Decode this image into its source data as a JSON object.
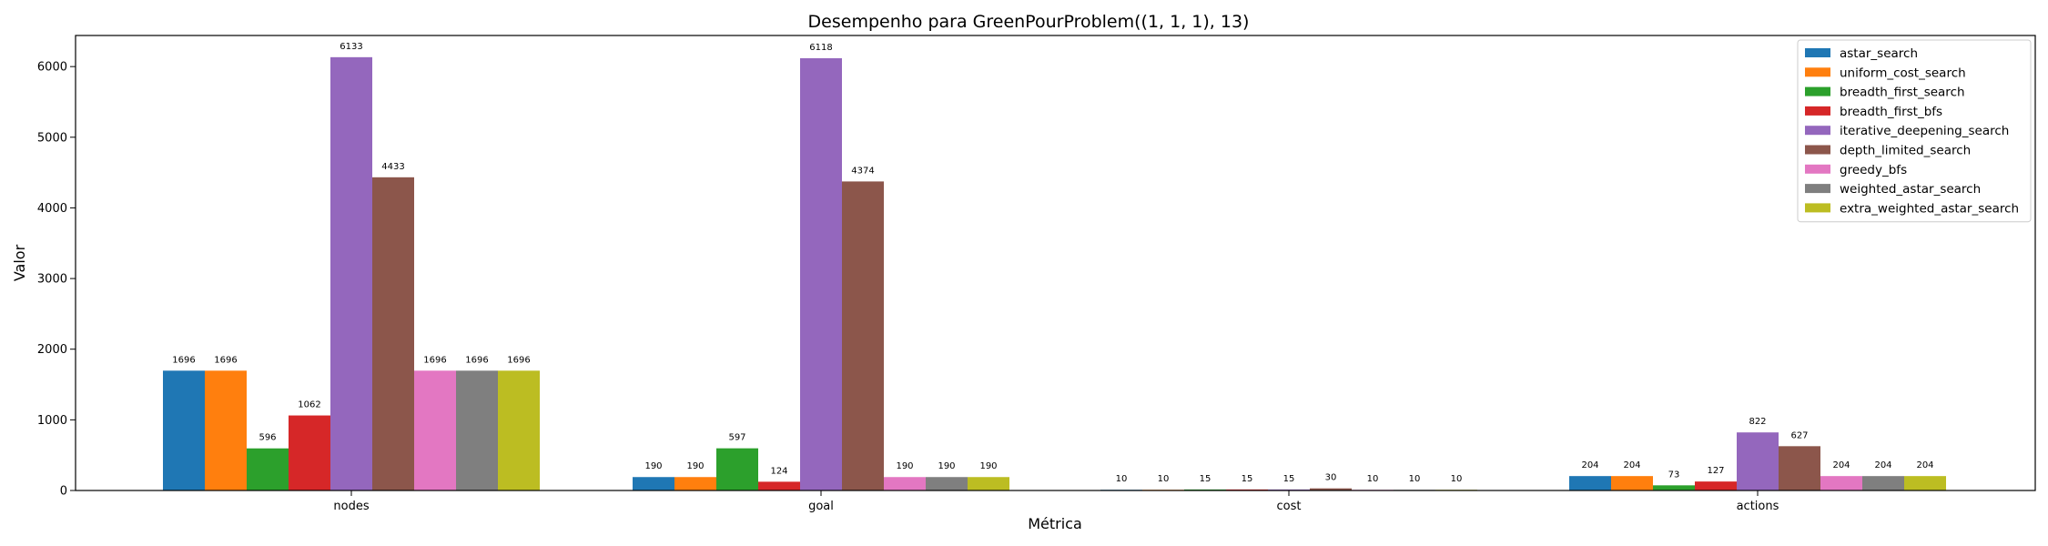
{
  "chart_data": {
    "type": "bar",
    "title": "Desempenho para GreenPourProblem((1, 1, 1), 13)",
    "xlabel": "Métrica",
    "ylabel": "Valor",
    "categories": [
      "nodes",
      "goal",
      "cost",
      "actions"
    ],
    "ylim": [
      0,
      6440
    ],
    "yticks": [
      0,
      1000,
      2000,
      3000,
      4000,
      5000,
      6000
    ],
    "legend_position": "top-right",
    "grid": false,
    "series": [
      {
        "name": "astar_search",
        "color": "#1f77b4",
        "values": [
          1696,
          190,
          10,
          204
        ]
      },
      {
        "name": "uniform_cost_search",
        "color": "#ff7f0e",
        "values": [
          1696,
          190,
          10,
          204
        ]
      },
      {
        "name": "breadth_first_search",
        "color": "#2ca02c",
        "values": [
          596,
          597,
          15,
          73
        ]
      },
      {
        "name": "breadth_first_bfs",
        "color": "#d62728",
        "values": [
          1062,
          124,
          15,
          127
        ]
      },
      {
        "name": "iterative_deepening_search",
        "color": "#9467bd",
        "values": [
          6133,
          6118,
          15,
          822
        ]
      },
      {
        "name": "depth_limited_search",
        "color": "#8c564b",
        "values": [
          4433,
          4374,
          30,
          627
        ]
      },
      {
        "name": "greedy_bfs",
        "color": "#e377c2",
        "values": [
          1696,
          190,
          10,
          204
        ]
      },
      {
        "name": "weighted_astar_search",
        "color": "#7f7f7f",
        "values": [
          1696,
          190,
          10,
          204
        ]
      },
      {
        "name": "extra_weighted_astar_search",
        "color": "#bcbd22",
        "values": [
          1696,
          190,
          10,
          204
        ]
      }
    ]
  }
}
